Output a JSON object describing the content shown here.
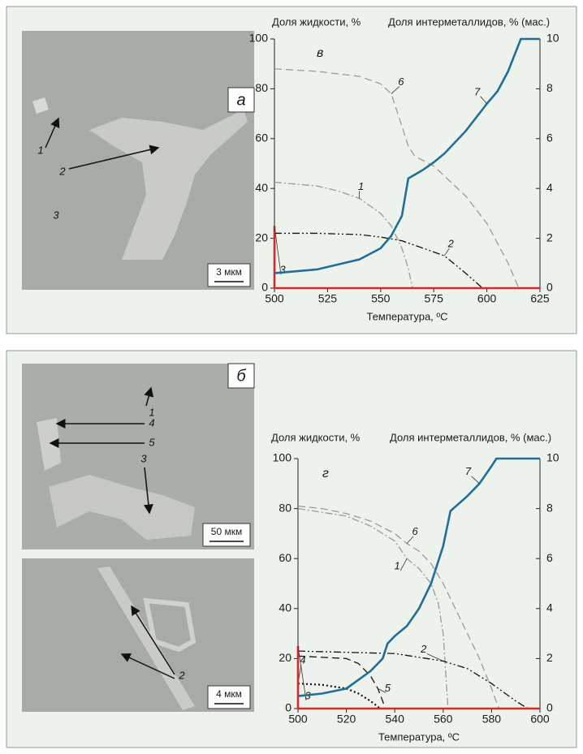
{
  "panels": [
    {
      "micrographs": [
        {
          "letter": "а",
          "markers": [
            "1",
            "2",
            "3"
          ],
          "scale_bar": "3 мкм"
        }
      ]
    },
    {
      "micrographs": [
        {
          "letter": "б",
          "markers": [
            "1",
            "4",
            "5",
            "3"
          ],
          "scale_bar": "50 мкм"
        },
        {
          "markers": [
            "2"
          ],
          "scale_bar": "4 мкм"
        }
      ]
    }
  ],
  "chart_data": [
    {
      "type": "line",
      "panel_label": "в",
      "y_label": "Доля жидкости, %",
      "y2_label": "Доля интерметаллидов, % (мас.)",
      "x_label": "Температура, ºС",
      "xlim": [
        500,
        625
      ],
      "xticks": [
        500,
        525,
        550,
        575,
        600,
        625
      ],
      "ylim": [
        0,
        100
      ],
      "yticks": [
        0,
        20,
        40,
        60,
        80,
        100
      ],
      "y2lim": [
        0,
        10
      ],
      "y2ticks": [
        0,
        2,
        4,
        6,
        8,
        10
      ],
      "series": [
        {
          "name": "6",
          "color": "#9a9a9a",
          "line_style": "dashed",
          "x": [
            500,
            520,
            540,
            550,
            555,
            560,
            563,
            566,
            575,
            590,
            600,
            610,
            615
          ],
          "values": [
            88,
            87,
            85,
            82,
            78,
            65,
            57,
            53,
            49,
            37,
            26,
            10,
            0
          ]
        },
        {
          "name": "1",
          "color": "#9a9a9a",
          "line_style": "dashdot",
          "x": [
            500,
            520,
            530,
            540,
            550,
            555,
            560,
            563,
            565
          ],
          "values": [
            42.5,
            41,
            39,
            36,
            30,
            25,
            16,
            8,
            0
          ]
        },
        {
          "name": "2",
          "color": "#111111",
          "line_style": "dashdotdot",
          "x": [
            500,
            520,
            540,
            550,
            560,
            570,
            580,
            590,
            598
          ],
          "values": [
            22,
            22,
            21.5,
            20.5,
            19,
            16,
            13,
            6,
            0
          ]
        },
        {
          "name": "3",
          "color": "#d42a2a",
          "line_style": "solid",
          "x": [
            500,
            500,
            625
          ],
          "values": [
            25,
            0,
            0
          ]
        },
        {
          "name": "7",
          "color": "#1f6f98",
          "line_style": "solid",
          "x": [
            500,
            520,
            540,
            550,
            555,
            560,
            563,
            570,
            575,
            580,
            590,
            600,
            605,
            610,
            616,
            625
          ],
          "values": [
            6,
            7.5,
            11.5,
            16,
            21,
            29,
            44,
            47.5,
            50.5,
            54,
            63,
            74,
            79,
            87,
            100,
            100
          ]
        }
      ]
    },
    {
      "type": "line",
      "panel_label": "г",
      "y_label": "Доля жидкости, %",
      "y2_label": "Доля интерметаллидов, % (мас.)",
      "x_label": "Температура, ºС",
      "xlim": [
        500,
        600
      ],
      "xticks": [
        500,
        520,
        540,
        560,
        580,
        600
      ],
      "ylim": [
        0,
        100
      ],
      "yticks": [
        0,
        20,
        40,
        60,
        80,
        100
      ],
      "y2lim": [
        0,
        10
      ],
      "y2ticks": [
        0,
        2,
        4,
        6,
        8,
        10
      ],
      "series": [
        {
          "name": "6",
          "color": "#9a9a9a",
          "line_style": "dashed",
          "x": [
            500,
            510,
            520,
            530,
            540,
            545,
            550,
            555,
            560,
            565,
            570,
            575,
            580,
            583
          ],
          "values": [
            81,
            80,
            78,
            75,
            70,
            66,
            63,
            58,
            50,
            40,
            30,
            20,
            8,
            0
          ]
        },
        {
          "name": "1",
          "color": "#9a9a9a",
          "line_style": "dashdot",
          "x": [
            500,
            520,
            530,
            540,
            545,
            550,
            555,
            558,
            560,
            562
          ],
          "values": [
            80,
            77,
            73,
            67,
            60,
            56,
            50,
            42,
            30,
            0
          ]
        },
        {
          "name": "2",
          "color": "#111111",
          "line_style": "dashdotdot",
          "x": [
            500,
            520,
            540,
            560,
            570,
            580,
            590,
            595
          ],
          "values": [
            23,
            22.5,
            22,
            19,
            16,
            10,
            3,
            0
          ]
        },
        {
          "name": "5",
          "color": "#111111",
          "line_style": "dashed",
          "x": [
            500,
            520,
            525,
            530,
            533,
            535,
            536
          ],
          "values": [
            21,
            20,
            18,
            13,
            8,
            3,
            0
          ]
        },
        {
          "name": "4",
          "color": "#111111",
          "line_style": "dotted",
          "x": [
            500,
            510,
            520,
            525,
            530,
            534
          ],
          "values": [
            10,
            9.5,
            8,
            6,
            3,
            0
          ]
        },
        {
          "name": "3",
          "color": "#d42a2a",
          "line_style": "solid",
          "x": [
            500,
            500,
            600
          ],
          "values": [
            25,
            0,
            0
          ]
        },
        {
          "name": "7",
          "color": "#1f6f98",
          "line_style": "solid",
          "x": [
            500,
            510,
            520,
            530,
            535,
            537,
            540,
            545,
            550,
            555,
            560,
            563,
            570,
            575,
            580,
            582,
            600
          ],
          "values": [
            5,
            6,
            8,
            15,
            20,
            26,
            29,
            33,
            40,
            50,
            65,
            79,
            85,
            90,
            97,
            100,
            100
          ]
        }
      ]
    }
  ]
}
